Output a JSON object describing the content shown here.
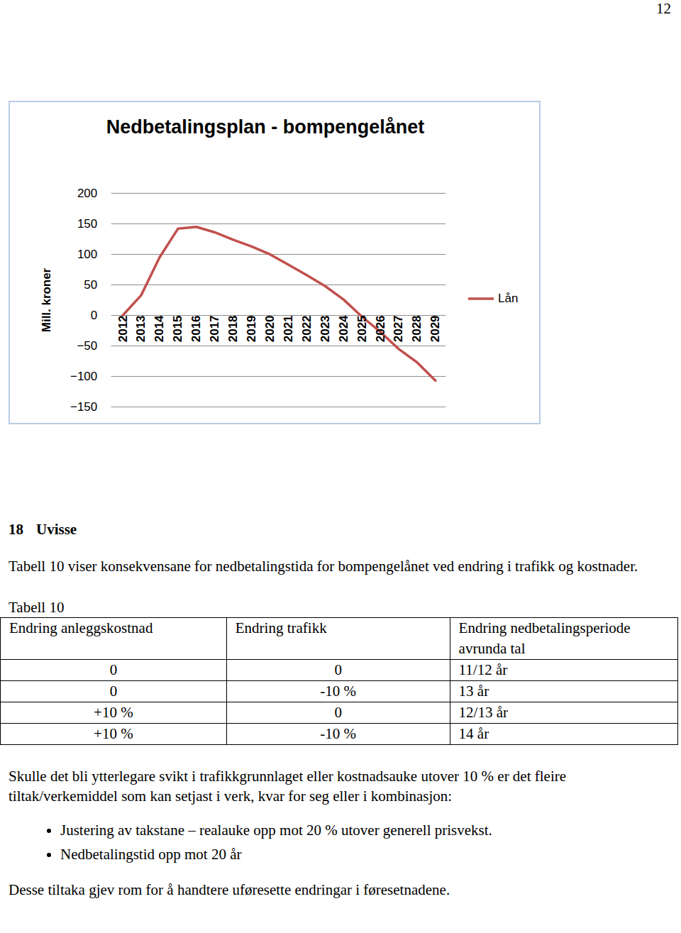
{
  "page_number": "12",
  "chart_data": {
    "type": "line",
    "title": "Nedbetalingsplan - bompengelånet",
    "ylabel": "Mill. kroner",
    "x": [
      2012,
      2013,
      2014,
      2015,
      2016,
      2017,
      2018,
      2019,
      2020,
      2021,
      2022,
      2023,
      2024,
      2025,
      2026,
      2027,
      2028,
      2029
    ],
    "series": [
      {
        "name": "Lån",
        "color": "#c0504d",
        "values": [
          0,
          33,
          95,
          142,
          145,
          136,
          124,
          113,
          100,
          83,
          66,
          48,
          26,
          -2,
          -27,
          -55,
          -77,
          -107
        ]
      }
    ],
    "ylim": [
      -150,
      200
    ],
    "yticks": [
      -150,
      -100,
      -50,
      0,
      50,
      100,
      150,
      200
    ],
    "grid": true,
    "legend": "right"
  },
  "section": {
    "number": "18",
    "title": "Uvisse",
    "intro": "Tabell 10 viser konsekvensane for nedbetalingstida for bompengelånet ved endring i trafikk og kostnader.",
    "table": {
      "caption": "Tabell 10",
      "header": [
        "Endring anleggskostnad",
        "Endring trafikk",
        "Endring nedbetalingsperiode avrunda tal"
      ],
      "rows": [
        [
          "0",
          "0",
          "11/12 år"
        ],
        [
          "0",
          "-10 %",
          "13 år"
        ],
        [
          "+10 %",
          "0",
          "12/13 år"
        ],
        [
          "+10 %",
          "-10 %",
          "14 år"
        ]
      ]
    },
    "paragraph": "Skulle det bli ytterlegare svikt i trafikkgrunnlaget eller kostnadsauke utover 10 % er det fleire tiltak/verkemiddel som kan setjast i verk, kvar for seg eller i kombinasjon:",
    "bullets": [
      "Justering av takstane – realauke opp mot 20 % utover generell prisvekst.",
      "Nedbetalingstid opp mot 20 år"
    ],
    "closing": "Desse tiltaka gjev rom for å handtere uføresette endringar i føresetnadene."
  }
}
